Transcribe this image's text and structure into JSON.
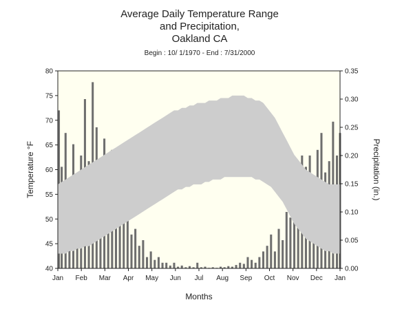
{
  "chart_data": {
    "type": "area",
    "title": [
      "Average Daily Temperature Range",
      "and Precipitation,",
      "Oakland CA"
    ],
    "subtitle": "Begin : 10/ 1/1970 - End :  7/31/2000",
    "xlabel": "Months",
    "ylabel_left": "Temperature °F",
    "ylabel_right": "Precipitation (in.)",
    "x_tick_labels": [
      "Jan",
      "Feb",
      "Mar",
      "Apr",
      "May",
      "Jun",
      "Jul",
      "Aug",
      "Sep",
      "Oct",
      "Nov",
      "Dec",
      "Jan"
    ],
    "ylim_left": [
      40,
      80
    ],
    "yticks_left": [
      40,
      45,
      50,
      55,
      60,
      65,
      70,
      75,
      80
    ],
    "ylim_right": [
      0,
      0.35
    ],
    "yticks_right": [
      "0.00",
      "0.05",
      "0.10",
      "0.15",
      "0.20",
      "0.25",
      "0.30",
      "0.35"
    ],
    "day_step": 5,
    "series": [
      {
        "kind": "range",
        "days": [
          1,
          6,
          11,
          16,
          21,
          26,
          31,
          36,
          41,
          46,
          51,
          56,
          61,
          66,
          71,
          76,
          81,
          86,
          91,
          96,
          101,
          106,
          111,
          116,
          121,
          126,
          131,
          136,
          141,
          146,
          151,
          156,
          161,
          166,
          171,
          176,
          181,
          186,
          191,
          196,
          201,
          206,
          211,
          216,
          221,
          226,
          231,
          236,
          241,
          246,
          251,
          256,
          261,
          266,
          271,
          276,
          281,
          286,
          291,
          296,
          301,
          306,
          311,
          316,
          321,
          326,
          331,
          336,
          341,
          346,
          351,
          356,
          361,
          365
        ],
        "high": [
          57,
          57.5,
          58,
          58.5,
          59,
          59.5,
          60,
          60.5,
          61,
          61.5,
          62,
          62.5,
          63,
          63.5,
          64,
          64.5,
          65,
          65.5,
          66,
          66.5,
          67,
          67.5,
          68,
          68.5,
          69,
          69.5,
          70,
          70.5,
          71,
          71.5,
          72,
          72,
          72.5,
          72.5,
          73,
          73,
          73.5,
          73.5,
          73.5,
          74,
          74,
          74,
          74.5,
          74.5,
          74.5,
          75,
          75,
          75,
          75,
          74.5,
          74.5,
          74,
          74,
          73.5,
          72.5,
          71.5,
          70.5,
          69,
          67.5,
          66,
          64.5,
          63,
          62,
          61,
          60,
          59.5,
          59,
          58.5,
          58,
          57.5,
          57,
          57,
          57,
          57
        ],
        "low": [
          43,
          43,
          43,
          43.5,
          43.5,
          44,
          44,
          44.5,
          44.5,
          45,
          45.5,
          46,
          46.5,
          47,
          47.5,
          48,
          48.5,
          49,
          49.5,
          50,
          50.5,
          51,
          51.5,
          52,
          52.5,
          53,
          53.5,
          54,
          54.5,
          55,
          55.5,
          56,
          56,
          56.5,
          56.5,
          57,
          57,
          57,
          57.5,
          57.5,
          58,
          58,
          58,
          58.5,
          58.5,
          58.5,
          58.5,
          58.5,
          58.5,
          58.5,
          58.5,
          58,
          58,
          57.5,
          57,
          56.5,
          55.5,
          54.5,
          53.5,
          52,
          50.5,
          49,
          48,
          47,
          46,
          45.5,
          45,
          44.5,
          44,
          43.5,
          43.5,
          43,
          43,
          43
        ]
      },
      {
        "kind": "bars",
        "days": [
          1,
          6,
          11,
          16,
          21,
          26,
          31,
          36,
          41,
          46,
          51,
          56,
          61,
          66,
          71,
          76,
          81,
          86,
          91,
          96,
          101,
          106,
          111,
          116,
          121,
          126,
          131,
          136,
          141,
          146,
          151,
          156,
          161,
          166,
          171,
          176,
          181,
          186,
          191,
          196,
          201,
          206,
          211,
          216,
          221,
          226,
          231,
          236,
          241,
          246,
          251,
          256,
          261,
          266,
          271,
          276,
          281,
          286,
          291,
          296,
          301,
          306,
          311,
          316,
          321,
          326,
          331,
          336,
          341,
          346,
          351,
          356,
          361,
          365
        ],
        "values": [
          0.28,
          0.18,
          0.24,
          0.12,
          0.22,
          0.16,
          0.2,
          0.3,
          0.19,
          0.33,
          0.25,
          0.14,
          0.23,
          0.12,
          0.21,
          0.09,
          0.13,
          0.08,
          0.11,
          0.06,
          0.07,
          0.04,
          0.05,
          0.02,
          0.03,
          0.015,
          0.02,
          0.01,
          0.01,
          0.005,
          0.01,
          0.003,
          0.005,
          0.002,
          0.004,
          0.002,
          0.01,
          0.002,
          0.003,
          0.001,
          0.002,
          0.001,
          0.003,
          0.002,
          0.004,
          0.003,
          0.006,
          0.01,
          0.008,
          0.02,
          0.015,
          0.01,
          0.02,
          0.03,
          0.04,
          0.06,
          0.03,
          0.07,
          0.05,
          0.1,
          0.09,
          0.16,
          0.13,
          0.2,
          0.18,
          0.2,
          0.16,
          0.21,
          0.24,
          0.17,
          0.19,
          0.26,
          0.2,
          0.24
        ]
      }
    ],
    "colors": {
      "plot_bg": "#fffff0",
      "range_fill": "#cdcdcd",
      "precip_bars": "#6e6e6e",
      "axis": "#222222"
    }
  }
}
